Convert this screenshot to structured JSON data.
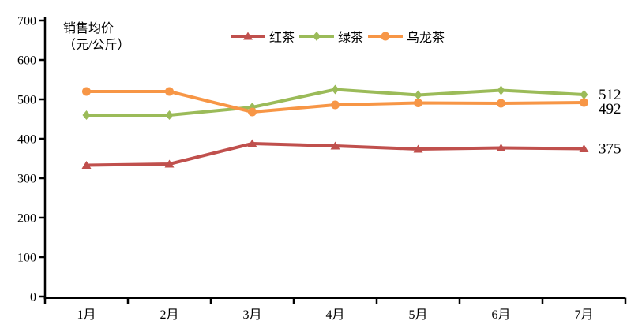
{
  "chart_data": {
    "type": "line",
    "title_lines": [
      "销售均价",
      "（元/公斤）"
    ],
    "categories": [
      "1月",
      "2月",
      "3月",
      "4月",
      "5月",
      "6月",
      "7月"
    ],
    "series": [
      {
        "name": "红茶",
        "color": "#C0504D",
        "marker": "triangle",
        "values": [
          333,
          336,
          388,
          382,
          374,
          377,
          375
        ]
      },
      {
        "name": "绿茶",
        "color": "#9BBB59",
        "marker": "diamond",
        "values": [
          460,
          460,
          480,
          525,
          511,
          523,
          512
        ]
      },
      {
        "name": "乌龙茶",
        "color": "#F79646",
        "marker": "circle",
        "values": [
          520,
          520,
          468,
          486,
          491,
          490,
          492
        ]
      }
    ],
    "end_labels": [
      {
        "text": "512",
        "series": "绿茶"
      },
      {
        "text": "492",
        "series": "乌龙茶"
      },
      {
        "text": "375",
        "series": "红茶"
      }
    ],
    "ylim": [
      0,
      700
    ],
    "yticks": [
      0,
      100,
      200,
      300,
      400,
      500,
      600,
      700
    ],
    "grid": false,
    "legend_position": "top",
    "axis_color": "#000000",
    "label_color": "#000000",
    "background_color": "#ffffff"
  }
}
